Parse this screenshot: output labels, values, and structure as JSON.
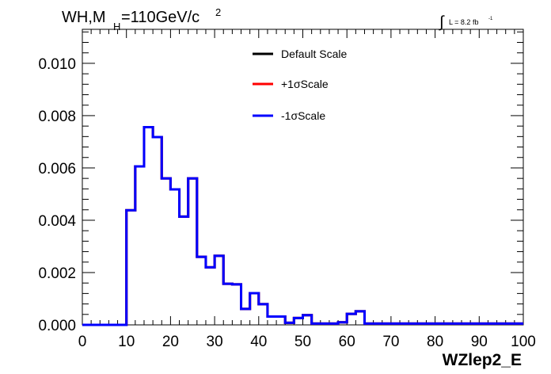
{
  "chart_data": {
    "type": "histogram",
    "title": {
      "main": "WH,M",
      "subscript": "H",
      "rest": "=110GeV/c",
      "superscript": "2"
    },
    "luminosity": {
      "integral_symbol": "∫",
      "label": "L = 8.2 fb",
      "superscript": "-1"
    },
    "xlabel": "WZlep2_E",
    "ylabel": "",
    "xlim": [
      0,
      100
    ],
    "ylim": [
      0,
      0.0113
    ],
    "x_ticks": [
      "0",
      "10",
      "20",
      "30",
      "40",
      "50",
      "60",
      "70",
      "80",
      "90",
      "100"
    ],
    "y_ticks": [
      "0.000",
      "0.002",
      "0.004",
      "0.006",
      "0.008",
      "0.010"
    ],
    "bin_width": 2,
    "bin_edges_start": 0,
    "legend_position": "top-center",
    "series": [
      {
        "name": "Default Scale",
        "color": "#000000",
        "values": [
          0,
          0,
          0,
          0,
          0,
          0.00438,
          0.00606,
          0.00756,
          0.00718,
          0.0056,
          0.00518,
          0.00414,
          0.0056,
          0.0026,
          0.0022,
          0.00264,
          0.00157,
          0.00155,
          0.00061,
          0.00121,
          0.00079,
          0.00032,
          0.00032,
          8e-05,
          0.00026,
          0.00037,
          5e-05,
          5e-05,
          5e-05,
          0.0001,
          0.00042,
          0.00052,
          5e-05,
          5e-05,
          5e-05,
          5e-05,
          5e-05,
          5e-05,
          5e-05,
          5e-05,
          5e-05,
          5e-05,
          5e-05,
          5e-05,
          5e-05,
          5e-05,
          5e-05,
          5e-05,
          5e-05,
          5e-05
        ]
      },
      {
        "name": "+1σScale",
        "color": "#ff0000",
        "values": [
          0,
          0,
          0,
          0,
          0,
          0.00438,
          0.00606,
          0.00756,
          0.00718,
          0.0056,
          0.00518,
          0.00414,
          0.0056,
          0.0026,
          0.0022,
          0.00264,
          0.00157,
          0.00155,
          0.00061,
          0.00121,
          0.00079,
          0.00032,
          0.00032,
          8e-05,
          0.00026,
          0.00037,
          5e-05,
          5e-05,
          5e-05,
          0.0001,
          0.00042,
          0.00052,
          5e-05,
          5e-05,
          5e-05,
          5e-05,
          5e-05,
          5e-05,
          5e-05,
          5e-05,
          5e-05,
          5e-05,
          5e-05,
          5e-05,
          5e-05,
          5e-05,
          5e-05,
          5e-05,
          5e-05,
          5e-05
        ]
      },
      {
        "name": "-1σScale",
        "color": "#0000ff",
        "values": [
          0,
          0,
          0,
          0,
          0,
          0.00438,
          0.00606,
          0.00756,
          0.00718,
          0.0056,
          0.00518,
          0.00414,
          0.0056,
          0.0026,
          0.0022,
          0.00264,
          0.00157,
          0.00155,
          0.00061,
          0.00121,
          0.00079,
          0.00032,
          0.00032,
          8e-05,
          0.00026,
          0.00037,
          5e-05,
          5e-05,
          5e-05,
          0.0001,
          0.00042,
          0.00052,
          5e-05,
          5e-05,
          5e-05,
          5e-05,
          5e-05,
          5e-05,
          5e-05,
          5e-05,
          5e-05,
          5e-05,
          5e-05,
          5e-05,
          5e-05,
          5e-05,
          5e-05,
          5e-05,
          5e-05,
          5e-05
        ]
      }
    ]
  }
}
